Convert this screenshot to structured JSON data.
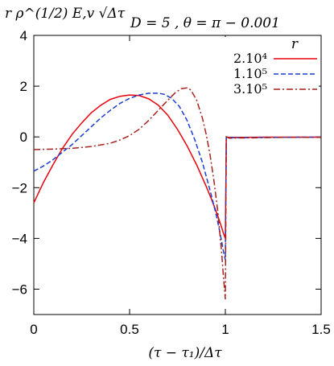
{
  "chart_data": {
    "type": "line",
    "title": "D = 5 ,  θ = π − 0.001",
    "ylabel": "r ρ^(1/2) E,v √Δτ",
    "xlabel": "(τ − τ₁)/Δτ",
    "xlim": [
      0,
      1.5
    ],
    "ylim": [
      -7,
      4
    ],
    "xticks": [
      0,
      0.5,
      1,
      1.5
    ],
    "xtick_labels": [
      "0",
      "0.5",
      "1",
      "1.5"
    ],
    "yticks": [
      4,
      2,
      0,
      -2,
      -4,
      -6
    ],
    "ytick_labels": [
      "4",
      "2",
      "0",
      "−2",
      "−4",
      "−6"
    ],
    "grid": false,
    "legend": {
      "title": "r",
      "placement": "top-right"
    },
    "series": [
      {
        "name": "2.10⁴",
        "color": "#e8000b",
        "dash": "solid",
        "x": [
          0,
          0.05,
          0.1,
          0.15,
          0.2,
          0.25,
          0.3,
          0.35,
          0.4,
          0.45,
          0.5,
          0.55,
          0.6,
          0.65,
          0.7,
          0.75,
          0.8,
          0.85,
          0.9,
          0.93,
          0.96,
          0.98,
          0.99,
          1.0,
          1.005,
          1.02,
          1.1,
          1.2,
          1.3,
          1.4,
          1.5
        ],
        "y": [
          -2.6,
          -1.8,
          -1.1,
          -0.45,
          0.1,
          0.55,
          0.95,
          1.25,
          1.48,
          1.6,
          1.65,
          1.63,
          1.5,
          1.25,
          0.85,
          0.3,
          -0.35,
          -1.1,
          -1.95,
          -2.5,
          -3.1,
          -3.55,
          -3.8,
          -4.0,
          0.0,
          -0.02,
          -0.02,
          -0.01,
          -0.01,
          -0.01,
          -0.01
        ]
      },
      {
        "name": "1.10⁵",
        "color": "#1a3cd0",
        "dash": "6,3",
        "x": [
          0,
          0.05,
          0.1,
          0.15,
          0.2,
          0.25,
          0.3,
          0.35,
          0.4,
          0.45,
          0.5,
          0.55,
          0.6,
          0.65,
          0.68,
          0.72,
          0.76,
          0.8,
          0.84,
          0.88,
          0.92,
          0.95,
          0.97,
          0.99,
          1.0,
          1.005,
          1.02,
          1.1,
          1.2,
          1.3,
          1.4,
          1.5
        ],
        "y": [
          -1.35,
          -1.15,
          -0.9,
          -0.6,
          -0.3,
          0.05,
          0.4,
          0.75,
          1.05,
          1.32,
          1.52,
          1.65,
          1.72,
          1.72,
          1.68,
          1.52,
          1.2,
          0.65,
          -0.1,
          -1.0,
          -2.1,
          -3.0,
          -3.7,
          -4.5,
          -4.85,
          0.0,
          -0.03,
          -0.03,
          -0.02,
          -0.02,
          -0.01,
          -0.01
        ]
      },
      {
        "name": "3.10⁵",
        "color": "#a8221d",
        "dash": "8,3,2,3",
        "x": [
          0,
          0.1,
          0.2,
          0.3,
          0.4,
          0.45,
          0.5,
          0.55,
          0.6,
          0.65,
          0.7,
          0.74,
          0.77,
          0.8,
          0.82,
          0.85,
          0.88,
          0.9,
          0.92,
          0.94,
          0.96,
          0.98,
          0.99,
          1.0,
          1.005,
          1.02,
          1.1,
          1.2,
          1.3,
          1.4,
          1.5
        ],
        "y": [
          -0.5,
          -0.48,
          -0.45,
          -0.38,
          -0.25,
          -0.12,
          0.05,
          0.3,
          0.65,
          1.05,
          1.45,
          1.75,
          1.9,
          1.93,
          1.85,
          1.45,
          0.75,
          0.1,
          -0.7,
          -1.7,
          -2.9,
          -4.5,
          -5.5,
          -6.4,
          0.0,
          -0.05,
          -0.04,
          -0.03,
          -0.02,
          -0.02,
          -0.02
        ]
      }
    ]
  }
}
